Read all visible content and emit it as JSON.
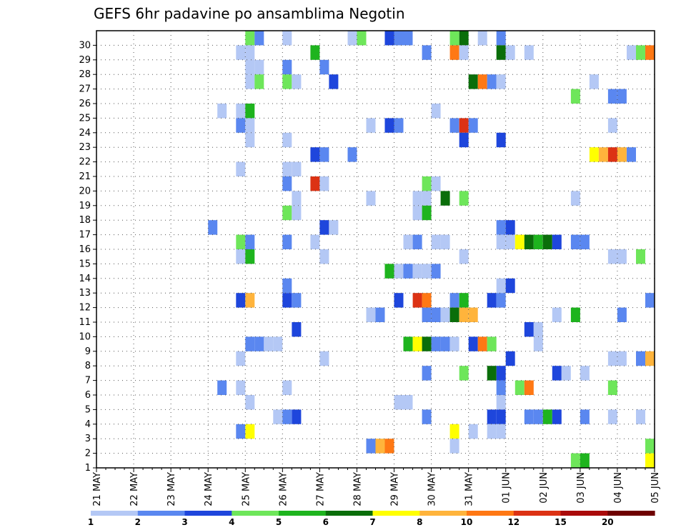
{
  "chart_data": {
    "type": "heatmap",
    "title": "GEFS 6hr padavine po ansamblima Negotin",
    "x_labels": [
      "21 MAY",
      "22 MAY",
      "23 MAY",
      "24 MAY",
      "25 MAY",
      "26 MAY",
      "27 MAY",
      "28 MAY",
      "29 MAY",
      "30 MAY",
      "31 MAY",
      "01 JUN",
      "02 JUN",
      "03 JUN",
      "04 JUN",
      "05 JUN"
    ],
    "y_labels": [
      "1",
      "2",
      "3",
      "4",
      "5",
      "6",
      "7",
      "8",
      "9",
      "10",
      "11",
      "12",
      "13",
      "14",
      "15",
      "16",
      "17",
      "18",
      "19",
      "20",
      "21",
      "22",
      "23",
      "24",
      "25",
      "26",
      "27",
      "28",
      "29",
      "30"
    ],
    "x_range_days": [
      0,
      15
    ],
    "y_range_members": [
      0,
      30
    ],
    "grid": true,
    "colorbar": {
      "labels": [
        "1",
        "2",
        "3",
        "4",
        "5",
        "6",
        "7",
        "8",
        "10",
        "12",
        "15",
        "20"
      ],
      "colors": [
        "#b4c8f5",
        "#5a87f0",
        "#1e46dc",
        "#6ee65a",
        "#1eb41e",
        "#0a6e0a",
        "#ffff00",
        "#ffb43c",
        "#ff7814",
        "#dc3214",
        "#aa0a0a",
        "#6e0000"
      ]
    },
    "cells": [
      [
        4.0,
        30,
        "#6ee65a"
      ],
      [
        4.25,
        30,
        "#5a87f0"
      ],
      [
        5.0,
        30,
        "#b4c8f5"
      ],
      [
        6.75,
        30,
        "#b4c8f5"
      ],
      [
        7.0,
        30,
        "#6ee65a"
      ],
      [
        7.75,
        30,
        "#1e46dc"
      ],
      [
        8.0,
        30,
        "#5a87f0"
      ],
      [
        8.25,
        30,
        "#5a87f0"
      ],
      [
        9.5,
        30,
        "#6ee65a"
      ],
      [
        9.75,
        30,
        "#0a6e0a"
      ],
      [
        10.25,
        30,
        "#b4c8f5"
      ],
      [
        10.75,
        30,
        "#5a87f0"
      ],
      [
        3.75,
        29,
        "#b4c8f5"
      ],
      [
        4.0,
        29,
        "#b4c8f5"
      ],
      [
        5.75,
        29,
        "#1eb41e"
      ],
      [
        8.75,
        29,
        "#5a87f0"
      ],
      [
        9.5,
        29,
        "#ff7814"
      ],
      [
        9.75,
        29,
        "#b4c8f5"
      ],
      [
        10.75,
        29,
        "#0a6e0a"
      ],
      [
        11.0,
        29,
        "#b4c8f5"
      ],
      [
        11.5,
        29,
        "#b4c8f5"
      ],
      [
        14.25,
        29,
        "#b4c8f5"
      ],
      [
        14.5,
        29,
        "#6ee65a"
      ],
      [
        14.75,
        29,
        "#ff7814"
      ],
      [
        4.0,
        28,
        "#b4c8f5"
      ],
      [
        4.25,
        28,
        "#b4c8f5"
      ],
      [
        5.0,
        28,
        "#5a87f0"
      ],
      [
        6.0,
        28,
        "#5a87f0"
      ],
      [
        4.0,
        27,
        "#b4c8f5"
      ],
      [
        4.25,
        27,
        "#6ee65a"
      ],
      [
        5.0,
        27,
        "#6ee65a"
      ],
      [
        5.25,
        27,
        "#b4c8f5"
      ],
      [
        6.25,
        27,
        "#1e46dc"
      ],
      [
        10.0,
        27,
        "#0a6e0a"
      ],
      [
        10.25,
        27,
        "#ff7814"
      ],
      [
        10.5,
        27,
        "#5a87f0"
      ],
      [
        10.75,
        27,
        "#b4c8f5"
      ],
      [
        13.25,
        27,
        "#b4c8f5"
      ],
      [
        12.75,
        26,
        "#6ee65a"
      ],
      [
        13.75,
        26,
        "#5a87f0"
      ],
      [
        14.0,
        26,
        "#5a87f0"
      ],
      [
        3.25,
        25,
        "#b4c8f5"
      ],
      [
        3.75,
        25,
        "#b4c8f5"
      ],
      [
        4.0,
        25,
        "#1eb41e"
      ],
      [
        9.0,
        25,
        "#b4c8f5"
      ],
      [
        3.75,
        24,
        "#5a87f0"
      ],
      [
        4.0,
        24,
        "#b4c8f5"
      ],
      [
        7.25,
        24,
        "#b4c8f5"
      ],
      [
        7.75,
        24,
        "#1e46dc"
      ],
      [
        8.0,
        24,
        "#5a87f0"
      ],
      [
        9.5,
        24,
        "#5a87f0"
      ],
      [
        9.75,
        24,
        "#dc3214"
      ],
      [
        10.0,
        24,
        "#5a87f0"
      ],
      [
        13.75,
        24,
        "#b4c8f5"
      ],
      [
        4.0,
        23,
        "#b4c8f5"
      ],
      [
        5.0,
        23,
        "#b4c8f5"
      ],
      [
        9.75,
        23,
        "#1e46dc"
      ],
      [
        10.75,
        23,
        "#1e46dc"
      ],
      [
        5.75,
        22,
        "#1e46dc"
      ],
      [
        6.0,
        22,
        "#5a87f0"
      ],
      [
        6.75,
        22,
        "#5a87f0"
      ],
      [
        13.25,
        22,
        "#ffff00"
      ],
      [
        13.5,
        22,
        "#ffb43c"
      ],
      [
        13.75,
        22,
        "#dc3214"
      ],
      [
        14.0,
        22,
        "#ffb43c"
      ],
      [
        14.25,
        22,
        "#5a87f0"
      ],
      [
        3.75,
        21,
        "#b4c8f5"
      ],
      [
        5.0,
        21,
        "#b4c8f5"
      ],
      [
        5.25,
        21,
        "#b4c8f5"
      ],
      [
        5.0,
        20,
        "#5a87f0"
      ],
      [
        5.75,
        20,
        "#dc3214"
      ],
      [
        6.0,
        20,
        "#b4c8f5"
      ],
      [
        8.75,
        20,
        "#6ee65a"
      ],
      [
        9.0,
        20,
        "#b4c8f5"
      ],
      [
        5.25,
        19,
        "#b4c8f5"
      ],
      [
        7.25,
        19,
        "#b4c8f5"
      ],
      [
        8.5,
        19,
        "#b4c8f5"
      ],
      [
        8.75,
        19,
        "#b4c8f5"
      ],
      [
        9.25,
        19,
        "#0a6e0a"
      ],
      [
        9.75,
        19,
        "#6ee65a"
      ],
      [
        12.75,
        19,
        "#b4c8f5"
      ],
      [
        5.0,
        18,
        "#6ee65a"
      ],
      [
        5.25,
        18,
        "#b4c8f5"
      ],
      [
        8.5,
        18,
        "#b4c8f5"
      ],
      [
        8.75,
        18,
        "#1eb41e"
      ],
      [
        3.0,
        17,
        "#5a87f0"
      ],
      [
        6.0,
        17,
        "#1e46dc"
      ],
      [
        6.25,
        17,
        "#b4c8f5"
      ],
      [
        10.75,
        17,
        "#5a87f0"
      ],
      [
        11.0,
        17,
        "#1e46dc"
      ],
      [
        3.75,
        16,
        "#6ee65a"
      ],
      [
        4.0,
        16,
        "#5a87f0"
      ],
      [
        5.0,
        16,
        "#5a87f0"
      ],
      [
        5.75,
        16,
        "#b4c8f5"
      ],
      [
        8.25,
        16,
        "#b4c8f5"
      ],
      [
        8.5,
        16,
        "#5a87f0"
      ],
      [
        9.0,
        16,
        "#b4c8f5"
      ],
      [
        9.25,
        16,
        "#b4c8f5"
      ],
      [
        10.75,
        16,
        "#b4c8f5"
      ],
      [
        11.0,
        16,
        "#b4c8f5"
      ],
      [
        11.25,
        16,
        "#ffff00"
      ],
      [
        11.5,
        16,
        "#0a6e0a"
      ],
      [
        11.75,
        16,
        "#1eb41e"
      ],
      [
        12.0,
        16,
        "#0a6e0a"
      ],
      [
        12.25,
        16,
        "#1e46dc"
      ],
      [
        12.75,
        16,
        "#5a87f0"
      ],
      [
        13.0,
        16,
        "#5a87f0"
      ],
      [
        3.75,
        15,
        "#b4c8f5"
      ],
      [
        4.0,
        15,
        "#1eb41e"
      ],
      [
        6.0,
        15,
        "#b4c8f5"
      ],
      [
        9.75,
        15,
        "#b4c8f5"
      ],
      [
        13.75,
        15,
        "#b4c8f5"
      ],
      [
        14.0,
        15,
        "#b4c8f5"
      ],
      [
        14.5,
        15,
        "#6ee65a"
      ],
      [
        7.75,
        14,
        "#1eb41e"
      ],
      [
        8.0,
        14,
        "#b4c8f5"
      ],
      [
        8.25,
        14,
        "#5a87f0"
      ],
      [
        8.5,
        14,
        "#b4c8f5"
      ],
      [
        8.75,
        14,
        "#b4c8f5"
      ],
      [
        9.0,
        14,
        "#5a87f0"
      ],
      [
        5.0,
        13,
        "#5a87f0"
      ],
      [
        10.75,
        13,
        "#b4c8f5"
      ],
      [
        11.0,
        13,
        "#1e46dc"
      ],
      [
        3.75,
        12,
        "#1e46dc"
      ],
      [
        4.0,
        12,
        "#ffb43c"
      ],
      [
        5.0,
        12,
        "#1e46dc"
      ],
      [
        5.25,
        12,
        "#5a87f0"
      ],
      [
        8.0,
        12,
        "#1e46dc"
      ],
      [
        8.5,
        12,
        "#dc3214"
      ],
      [
        8.75,
        12,
        "#ff7814"
      ],
      [
        9.5,
        12,
        "#5a87f0"
      ],
      [
        9.75,
        12,
        "#1eb41e"
      ],
      [
        10.5,
        12,
        "#1e46dc"
      ],
      [
        10.75,
        12,
        "#5a87f0"
      ],
      [
        14.75,
        12,
        "#5a87f0"
      ],
      [
        7.25,
        11,
        "#b4c8f5"
      ],
      [
        7.5,
        11,
        "#5a87f0"
      ],
      [
        8.75,
        11,
        "#5a87f0"
      ],
      [
        9.0,
        11,
        "#5a87f0"
      ],
      [
        9.25,
        11,
        "#b4c8f5"
      ],
      [
        9.5,
        11,
        "#0a6e0a"
      ],
      [
        9.75,
        11,
        "#ffb43c"
      ],
      [
        10.0,
        11,
        "#ffb43c"
      ],
      [
        12.25,
        11,
        "#b4c8f5"
      ],
      [
        12.75,
        11,
        "#1eb41e"
      ],
      [
        14.0,
        11,
        "#5a87f0"
      ],
      [
        5.25,
        10,
        "#1e46dc"
      ],
      [
        11.5,
        10,
        "#1e46dc"
      ],
      [
        11.75,
        10,
        "#b4c8f5"
      ],
      [
        4.0,
        9,
        "#5a87f0"
      ],
      [
        4.25,
        9,
        "#5a87f0"
      ],
      [
        4.5,
        9,
        "#b4c8f5"
      ],
      [
        4.75,
        9,
        "#b4c8f5"
      ],
      [
        8.25,
        9,
        "#1eb41e"
      ],
      [
        8.5,
        9,
        "#ffff00"
      ],
      [
        8.75,
        9,
        "#0a6e0a"
      ],
      [
        9.0,
        9,
        "#5a87f0"
      ],
      [
        9.25,
        9,
        "#5a87f0"
      ],
      [
        9.5,
        9,
        "#b4c8f5"
      ],
      [
        10.0,
        9,
        "#1e46dc"
      ],
      [
        10.25,
        9,
        "#ff7814"
      ],
      [
        10.5,
        9,
        "#6ee65a"
      ],
      [
        11.75,
        9,
        "#b4c8f5"
      ],
      [
        3.75,
        8,
        "#b4c8f5"
      ],
      [
        6.0,
        8,
        "#b4c8f5"
      ],
      [
        11.0,
        8,
        "#1e46dc"
      ],
      [
        13.75,
        8,
        "#b4c8f5"
      ],
      [
        14.0,
        8,
        "#b4c8f5"
      ],
      [
        14.5,
        8,
        "#5a87f0"
      ],
      [
        14.75,
        8,
        "#ffb43c"
      ],
      [
        8.75,
        7,
        "#5a87f0"
      ],
      [
        9.75,
        7,
        "#6ee65a"
      ],
      [
        10.5,
        7,
        "#0a6e0a"
      ],
      [
        10.75,
        7,
        "#1e46dc"
      ],
      [
        12.25,
        7,
        "#1e46dc"
      ],
      [
        12.5,
        7,
        "#b4c8f5"
      ],
      [
        13.0,
        7,
        "#b4c8f5"
      ],
      [
        3.25,
        6,
        "#5a87f0"
      ],
      [
        3.75,
        6,
        "#b4c8f5"
      ],
      [
        5.0,
        6,
        "#b4c8f5"
      ],
      [
        10.75,
        6,
        "#5a87f0"
      ],
      [
        11.25,
        6,
        "#6ee65a"
      ],
      [
        11.5,
        6,
        "#ff7814"
      ],
      [
        13.75,
        6,
        "#6ee65a"
      ],
      [
        4.0,
        5,
        "#b4c8f5"
      ],
      [
        8.0,
        5,
        "#b4c8f5"
      ],
      [
        8.25,
        5,
        "#b4c8f5"
      ],
      [
        10.75,
        5,
        "#b4c8f5"
      ],
      [
        4.75,
        4,
        "#b4c8f5"
      ],
      [
        5.0,
        4,
        "#5a87f0"
      ],
      [
        5.25,
        4,
        "#1e46dc"
      ],
      [
        8.75,
        4,
        "#5a87f0"
      ],
      [
        10.5,
        4,
        "#1e46dc"
      ],
      [
        10.75,
        4,
        "#1e46dc"
      ],
      [
        11.5,
        4,
        "#5a87f0"
      ],
      [
        11.75,
        4,
        "#5a87f0"
      ],
      [
        12.0,
        4,
        "#1eb41e"
      ],
      [
        12.25,
        4,
        "#1e46dc"
      ],
      [
        13.0,
        4,
        "#5a87f0"
      ],
      [
        13.75,
        4,
        "#b4c8f5"
      ],
      [
        14.5,
        4,
        "#b4c8f5"
      ],
      [
        3.75,
        3,
        "#5a87f0"
      ],
      [
        4.0,
        3,
        "#ffff00"
      ],
      [
        9.5,
        3,
        "#ffff00"
      ],
      [
        10.0,
        3,
        "#b4c8f5"
      ],
      [
        10.5,
        3,
        "#b4c8f5"
      ],
      [
        10.75,
        3,
        "#b4c8f5"
      ],
      [
        7.25,
        2,
        "#5a87f0"
      ],
      [
        7.5,
        2,
        "#ffb43c"
      ],
      [
        7.75,
        2,
        "#ff7814"
      ],
      [
        9.5,
        2,
        "#b4c8f5"
      ],
      [
        14.75,
        2,
        "#6ee65a"
      ],
      [
        12.75,
        1,
        "#6ee65a"
      ],
      [
        13.0,
        1,
        "#1eb41e"
      ],
      [
        14.75,
        1,
        "#ffff00"
      ]
    ]
  }
}
